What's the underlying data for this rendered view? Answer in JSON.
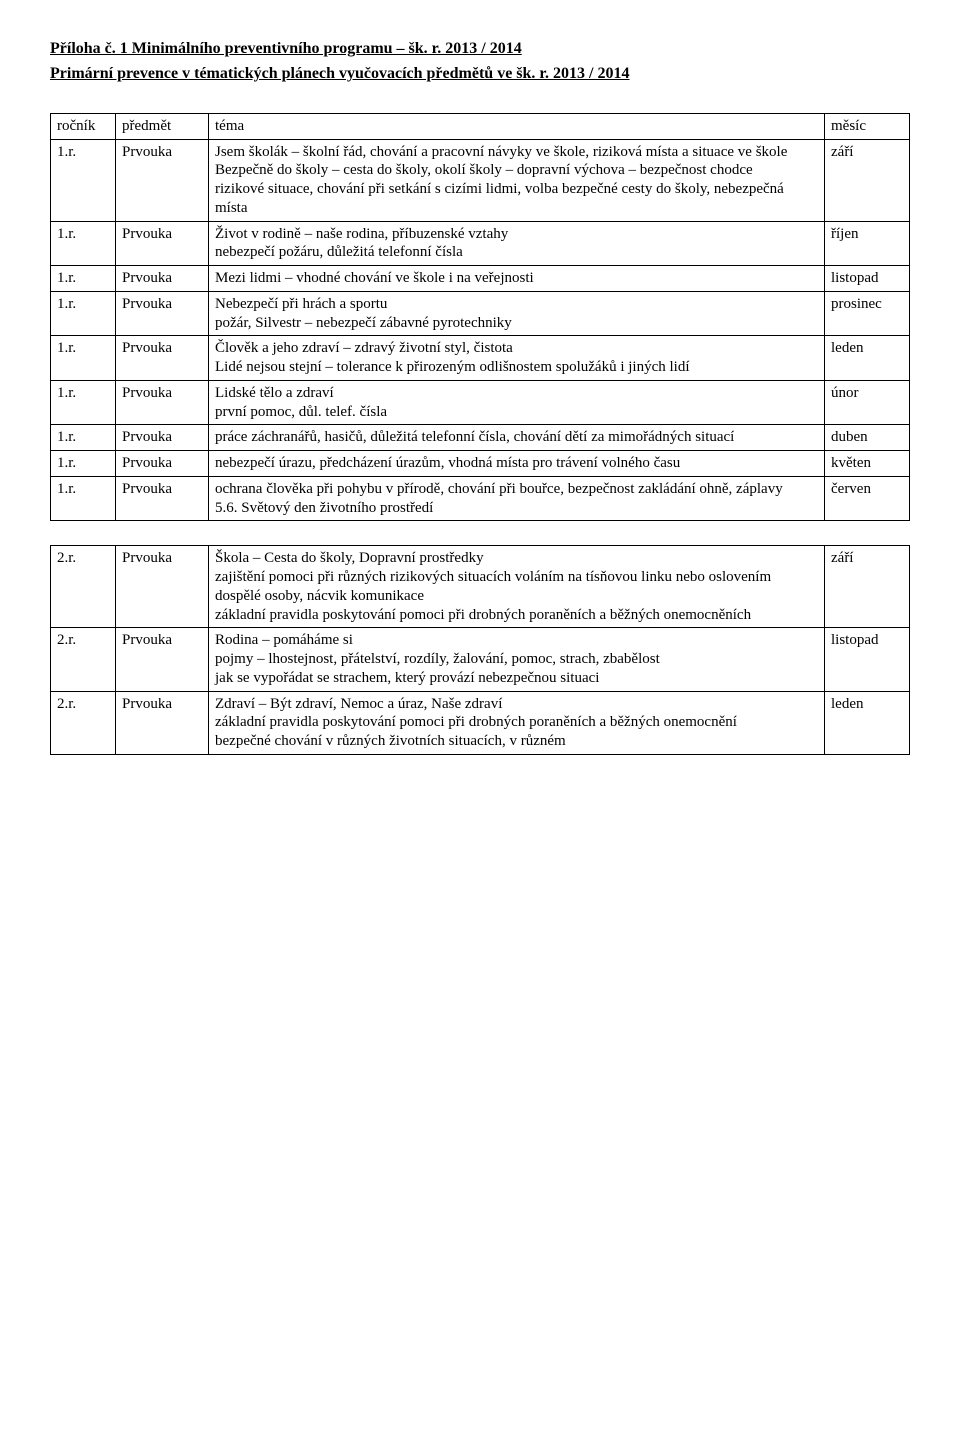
{
  "title": "Příloha  č. 1  Minimálního preventivního programu – šk. r. 2013 / 2014",
  "subtitle": "Primární prevence v tématických plánech vyučovacích předmětů  ve šk. r. 2013 / 2014",
  "table1": {
    "header": {
      "rocnik": "ročník",
      "predmet": "předmět",
      "tema": "téma",
      "mesic": "měsíc"
    },
    "rows": [
      {
        "rocnik": "1.r.",
        "predmet": "Prvouka",
        "tema": "Jsem školák – školní řád, chování a pracovní návyky ve škole, riziková místa a situace ve škole\nBezpečně do školy – cesta do školy, okolí školy – dopravní výchova – bezpečnost chodce\nrizikové situace, chování při setkání s cizími lidmi, volba bezpečné cesty do školy, nebezpečná místa",
        "mesic": "září"
      },
      {
        "rocnik": "1.r.",
        "predmet": "Prvouka",
        "tema": "Život v rodině – naše rodina, příbuzenské vztahy\nnebezpečí požáru, důležitá telefonní čísla",
        "mesic": "říjen"
      },
      {
        "rocnik": "1.r.",
        "predmet": "Prvouka",
        "tema": "Mezi lidmi – vhodné chování ve škole i na veřejnosti",
        "mesic": "listopad"
      },
      {
        "rocnik": "1.r.",
        "predmet": "Prvouka",
        "tema": "Nebezpečí při hrách a sportu\npožár, Silvestr – nebezpečí zábavné pyrotechniky",
        "mesic": "prosinec"
      },
      {
        "rocnik": "1.r.",
        "predmet": "Prvouka",
        "tema": "Člověk a jeho zdraví – zdravý životní styl, čistota\nLidé nejsou stejní – tolerance k přirozeným odlišnostem spolužáků i jiných lidí",
        "mesic": "leden"
      },
      {
        "rocnik": "1.r.",
        "predmet": "Prvouka",
        "tema": "Lidské tělo a zdraví\nprvní pomoc, důl. telef. čísla",
        "mesic": "únor"
      },
      {
        "rocnik": "1.r.",
        "predmet": "Prvouka",
        "tema": "práce záchranářů, hasičů, důležitá telefonní čísla, chování dětí za mimořádných situací",
        "mesic": "duben"
      },
      {
        "rocnik": "1.r.",
        "predmet": "Prvouka",
        "tema": "nebezpečí úrazu, předcházení úrazům, vhodná místa pro trávení volného času",
        "mesic": "květen"
      },
      {
        "rocnik": "1.r.",
        "predmet": "Prvouka",
        "tema": "ochrana člověka při pohybu v přírodě, chování při bouřce, bezpečnost zakládání ohně, záplavy\n5.6. Světový den životního prostředí",
        "mesic": "červen"
      }
    ]
  },
  "table2": {
    "rows": [
      {
        "rocnik": "2.r.",
        "predmet": "Prvouka",
        "tema": "Škola – Cesta do školy, Dopravní prostředky\nzajištění pomoci při různých rizikových situacích voláním na tísňovou linku nebo oslovením dospělé osoby, nácvik komunikace\nzákladní pravidla poskytování pomoci při drobných poraněních a běžných onemocněních",
        "mesic": "září"
      },
      {
        "rocnik": "2.r.",
        "predmet": "Prvouka",
        "tema": "Rodina – pomáháme si\npojmy – lhostejnost, přátelství, rozdíly, žalování, pomoc, strach, zbabělost\njak se vypořádat se strachem, který provází nebezpečnou situaci",
        "mesic": "listopad"
      },
      {
        "rocnik": "2.r.",
        "predmet": "Prvouka",
        "tema": "Zdraví – Být zdraví, Nemoc a úraz, Naše zdraví\nzákladní pravidla poskytování pomoci při drobných poraněních a běžných onemocnění\nbezpečné chování v různých životních situacích, v různém",
        "mesic": "leden"
      }
    ]
  }
}
